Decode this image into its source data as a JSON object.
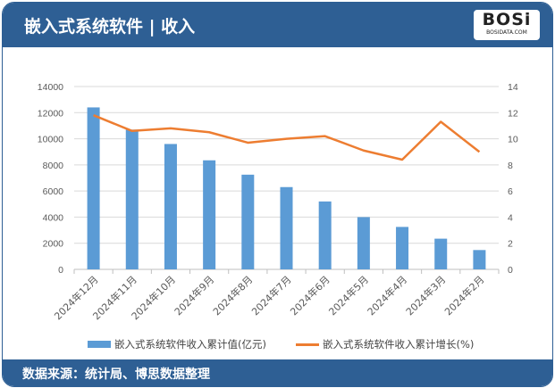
{
  "header": {
    "title": "嵌入式系统软件 | 收入",
    "logo_text": "BOSi",
    "logo_sub": "BOSIDATA.COM"
  },
  "footer": {
    "source": "数据来源：统计局、博思数据整理"
  },
  "colors": {
    "header": "#2e5f94",
    "bar": "#5b9bd5",
    "line": "#ed7d31"
  },
  "chart_data": {
    "type": "bar+line",
    "categories": [
      "2024年12月",
      "2024年11月",
      "2024年10月",
      "2024年9月",
      "2024年8月",
      "2024年7月",
      "2024年6月",
      "2024年5月",
      "2024年4月",
      "2024年3月",
      "2024年2月"
    ],
    "series": [
      {
        "name": "嵌入式系统软件收入累计值(亿元)",
        "type": "bar",
        "axis": "left",
        "values": [
          12400,
          10700,
          9600,
          8350,
          7250,
          6300,
          5200,
          4000,
          3250,
          2350,
          1480
        ]
      },
      {
        "name": "嵌入式系统软件收入累计增长(%)",
        "type": "line",
        "axis": "right",
        "values": [
          11.8,
          10.6,
          10.8,
          10.5,
          9.7,
          10.0,
          10.2,
          9.1,
          8.4,
          11.3,
          9.0
        ]
      }
    ],
    "yleft": {
      "range": [
        0,
        14000
      ],
      "ticks": [
        "0",
        "2000",
        "4000",
        "6000",
        "8000",
        "10000",
        "12000",
        "14000"
      ]
    },
    "yright": {
      "range": [
        0,
        14
      ],
      "ticks": [
        "0",
        "2",
        "4",
        "6",
        "8",
        "10",
        "12",
        "14"
      ]
    },
    "grid": true,
    "legend": "bottom"
  }
}
